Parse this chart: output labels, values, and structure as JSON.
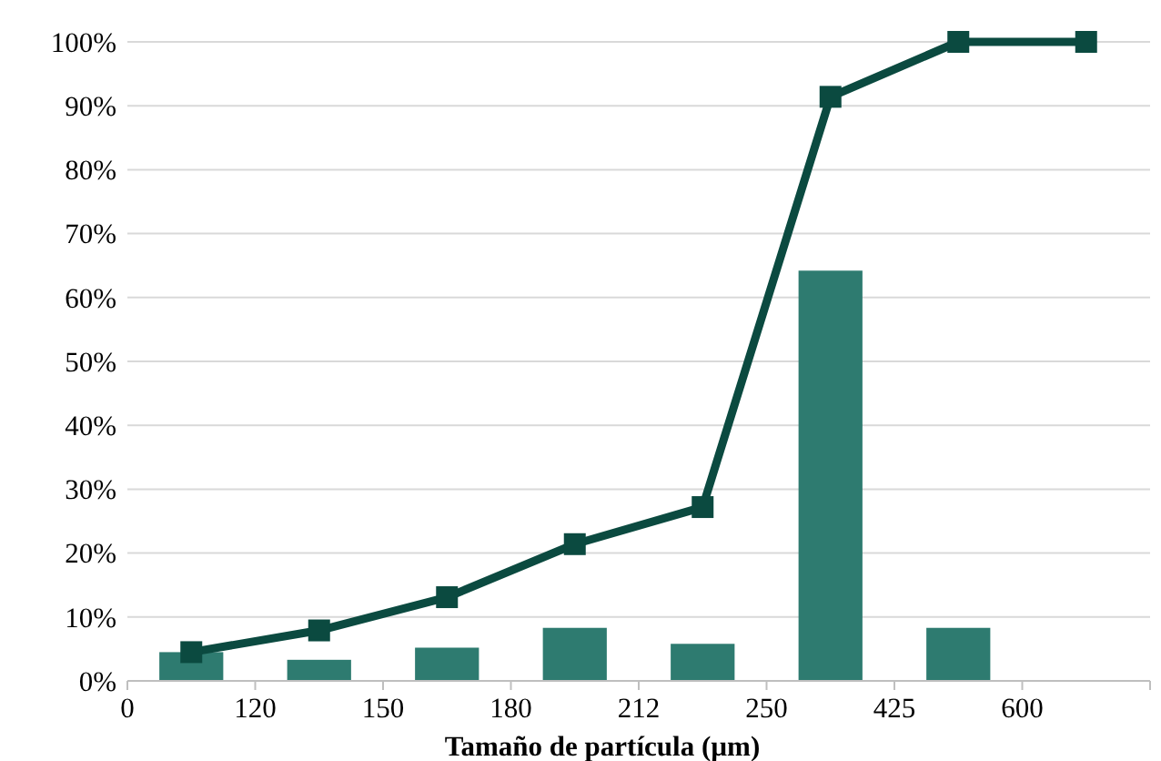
{
  "chart_data": {
    "type": "bar",
    "xlabel": "Tamaño de partícula (µm)",
    "categories": [
      null,
      null,
      null,
      null,
      null,
      null,
      null,
      null
    ],
    "annotations": [
      "0",
      "120",
      "150",
      "180",
      "212",
      "250",
      "425",
      "600"
    ],
    "series": [
      {
        "color": "#2e7b70",
        "values": [
          4.5,
          3.3,
          5.2,
          8.3,
          5.8,
          64.2,
          8.3,
          0
        ]
      },
      {
        "type": "line",
        "color": "#0b4a40",
        "values": [
          4.5,
          7.9,
          13.1,
          21.4,
          27.2,
          91.4,
          100,
          100
        ],
        "marker": "square"
      }
    ],
    "ylim": [
      0,
      100
    ],
    "yticks": [
      {
        "value": 0,
        "label": "0%"
      },
      {
        "value": 10,
        "label": "10%"
      },
      {
        "value": 20,
        "label": "20%"
      },
      {
        "value": 30,
        "label": "30%"
      },
      {
        "value": 40,
        "label": "40%"
      },
      {
        "value": 50,
        "label": "50%"
      },
      {
        "value": 60,
        "label": "60%"
      },
      {
        "value": 70,
        "label": "70%"
      },
      {
        "value": 80,
        "label": "80%"
      },
      {
        "value": 90,
        "label": "90%"
      },
      {
        "value": 100,
        "label": "100%"
      }
    ],
    "grid": "y",
    "line_style": "solid"
  }
}
